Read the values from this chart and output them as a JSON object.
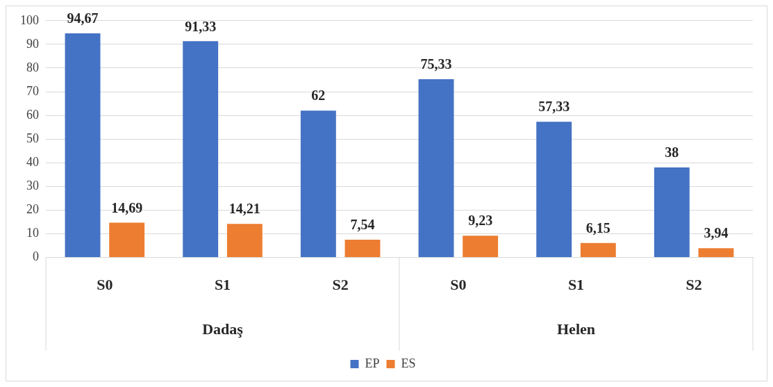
{
  "chart_data": {
    "type": "bar",
    "categories": [
      "S0",
      "S1",
      "S2",
      "S0",
      "S1",
      "S2"
    ],
    "series": [
      {
        "name": "EP",
        "color": "#4472c4",
        "values": [
          94.67,
          91.33,
          62,
          75.33,
          57.33,
          38
        ],
        "value_labels": [
          "94,67",
          "91,33",
          "62",
          "75,33",
          "57,33",
          "38"
        ]
      },
      {
        "name": "ES",
        "color": "#ed7d31",
        "values": [
          14.69,
          14.21,
          7.54,
          9.23,
          6.15,
          3.94
        ],
        "value_labels": [
          "14,69",
          "14,21",
          "7,54",
          "9,23",
          "6,15",
          "3,94"
        ]
      }
    ],
    "annotations": [
      "Dadaş",
      "Helen"
    ],
    "ylim": [
      0,
      100
    ],
    "yticks": [
      0,
      10,
      20,
      30,
      40,
      50,
      60,
      70,
      80,
      90,
      100
    ],
    "grid": "y",
    "legend": "bottom"
  }
}
